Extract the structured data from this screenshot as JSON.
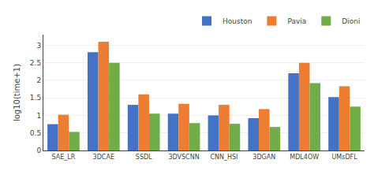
{
  "chart_data": {
    "type": "bar",
    "categories": [
      "SAE_LR",
      "3DCAE",
      "SSDL",
      "3DVSCNN",
      "CNN_HSI",
      "3DGAN",
      "MDL4OW",
      "UMsDFL"
    ],
    "series": [
      {
        "name": "Houston",
        "color": "#4472C4",
        "values": [
          0.75,
          2.8,
          1.3,
          1.05,
          1.0,
          0.92,
          2.2,
          1.52
        ]
      },
      {
        "name": "Pavia",
        "color": "#ED7D31",
        "values": [
          1.02,
          3.1,
          1.6,
          1.33,
          1.3,
          1.18,
          2.5,
          1.83
        ]
      },
      {
        "name": "Dioni",
        "color": "#70AD47",
        "values": [
          0.53,
          2.5,
          1.05,
          0.78,
          0.76,
          0.67,
          1.92,
          1.25
        ]
      }
    ],
    "ylabel": "log10(time+1)",
    "ylim": [
      0,
      3.3
    ],
    "yticks": [
      0,
      0.5,
      1.0,
      1.5,
      2.0,
      2.5,
      3.0
    ],
    "grid": true,
    "legend": "upper right"
  }
}
